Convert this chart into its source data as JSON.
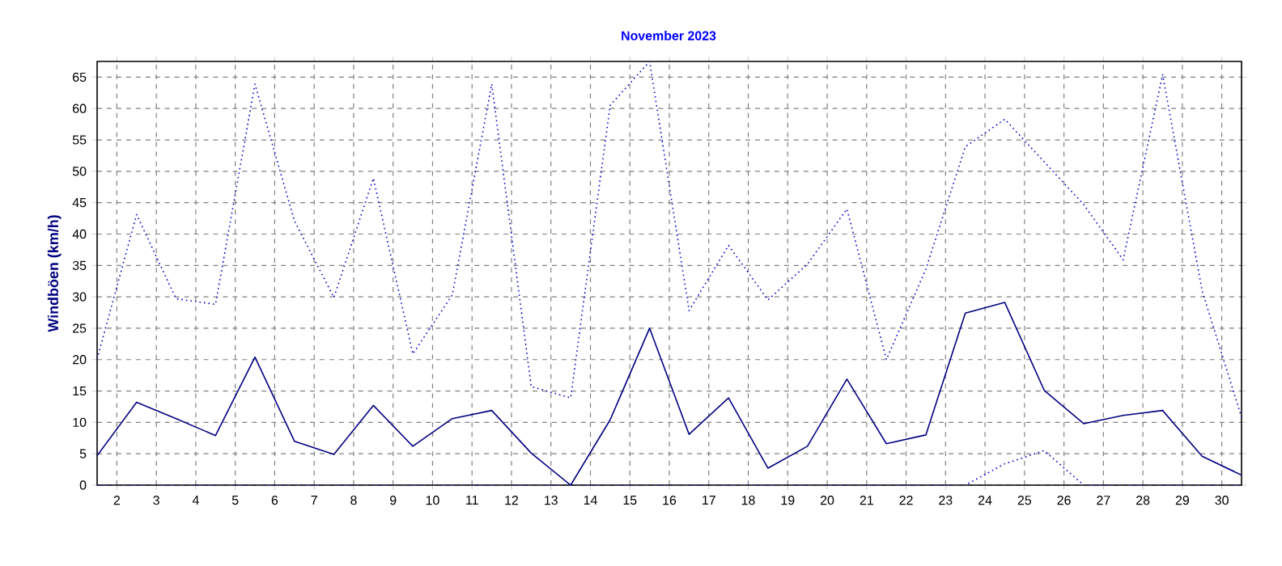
{
  "chart_data": {
    "type": "line",
    "title": "November 2023",
    "ylabel": "Windböen  (km/h)",
    "x": [
      1.5,
      2.5,
      3.5,
      4.5,
      5.5,
      6.5,
      7.5,
      8.5,
      9.5,
      10.5,
      11.5,
      12.5,
      13.5,
      14.5,
      15.5,
      16.5,
      17.5,
      18.5,
      19.5,
      20.5,
      21.5,
      22.5,
      23.5,
      24.5,
      25.5,
      26.5,
      27.5,
      28.5,
      29.5,
      30.5
    ],
    "series": [
      {
        "color": "#000080",
        "line_style": "solid",
        "values": [
          4.7,
          13.2,
          10.6,
          7.9,
          20.4,
          7.0,
          4.9,
          12.7,
          6.2,
          10.6,
          11.9,
          5.1,
          0,
          10.4,
          25.0,
          8.1,
          13.9,
          2.7,
          6.2,
          16.9,
          6.6,
          8.0,
          27.4,
          29.1,
          15.1,
          9.8,
          11.1,
          11.9,
          4.6,
          1.6
        ]
      },
      {
        "color": "#0000cc",
        "line_style": "dotted",
        "values": [
          20.1,
          43.1,
          29.7,
          28.8,
          63.9,
          42.1,
          29.9,
          48.9,
          20.9,
          30.3,
          63.9,
          15.7,
          13.9,
          60.5,
          67.5,
          27.8,
          38.2,
          29.5,
          35.2,
          44.0,
          20.0,
          34.4,
          53.9,
          58.3,
          51.5,
          44.7,
          35.9,
          65.4,
          31.0,
          10.8
        ]
      },
      {
        "color": "#0000cc",
        "line_style": "dotted",
        "values": [
          0,
          0,
          0,
          0,
          0,
          0,
          0,
          0,
          0,
          0,
          0,
          0,
          0,
          0,
          0,
          0,
          0,
          0,
          0,
          0,
          0,
          0,
          0,
          3.4,
          5.5,
          0,
          0,
          0,
          0,
          0
        ]
      }
    ],
    "xlim": [
      1.5,
      30.5
    ],
    "xticks": [
      2,
      3,
      4,
      5,
      6,
      7,
      8,
      9,
      10,
      11,
      12,
      13,
      14,
      15,
      16,
      17,
      18,
      19,
      20,
      21,
      22,
      23,
      24,
      25,
      26,
      27,
      28,
      29,
      30
    ],
    "ylim": [
      0,
      67.5
    ],
    "yticks": [
      0,
      5,
      10,
      15,
      20,
      25,
      30,
      35,
      40,
      45,
      50,
      55,
      60,
      65
    ],
    "grid": true,
    "marker": "none"
  }
}
